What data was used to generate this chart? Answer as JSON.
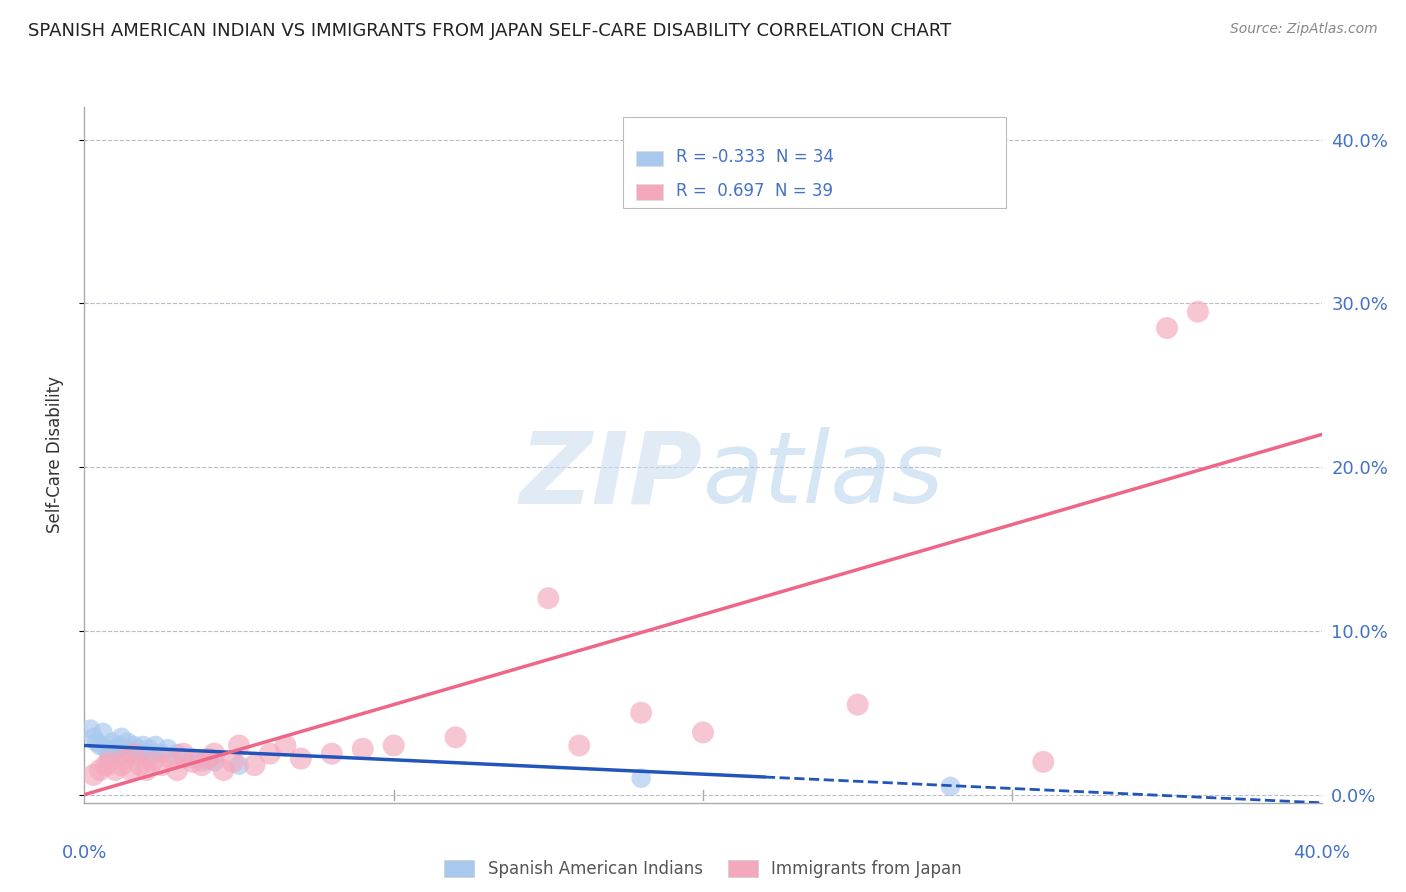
{
  "title": "SPANISH AMERICAN INDIAN VS IMMIGRANTS FROM JAPAN SELF-CARE DISABILITY CORRELATION CHART",
  "source": "Source: ZipAtlas.com",
  "ylabel": "Self-Care Disability",
  "legend_label1": "Spanish American Indians",
  "legend_label2": "Immigrants from Japan",
  "R1": -0.333,
  "N1": 34,
  "R2": 0.697,
  "N2": 39,
  "color1": "#A8C8EE",
  "color2": "#F4A8BC",
  "trendline1_color": "#2255BB",
  "trendline2_color": "#EE6688",
  "xrange": [
    0.0,
    0.4
  ],
  "yrange": [
    -0.005,
    0.42
  ],
  "ytick_vals": [
    0.0,
    0.1,
    0.2,
    0.3,
    0.4
  ],
  "scatter1_x": [
    0.002,
    0.003,
    0.004,
    0.005,
    0.006,
    0.007,
    0.008,
    0.009,
    0.01,
    0.011,
    0.012,
    0.012,
    0.013,
    0.014,
    0.015,
    0.016,
    0.017,
    0.018,
    0.019,
    0.02,
    0.021,
    0.022,
    0.023,
    0.025,
    0.027,
    0.03,
    0.032,
    0.035,
    0.038,
    0.04,
    0.042,
    0.05,
    0.18,
    0.28
  ],
  "scatter1_y": [
    0.04,
    0.035,
    0.032,
    0.03,
    0.038,
    0.028,
    0.025,
    0.032,
    0.028,
    0.03,
    0.025,
    0.035,
    0.028,
    0.032,
    0.025,
    0.03,
    0.028,
    0.025,
    0.03,
    0.025,
    0.028,
    0.025,
    0.03,
    0.025,
    0.028,
    0.025,
    0.022,
    0.022,
    0.02,
    0.022,
    0.02,
    0.018,
    0.01,
    0.005
  ],
  "scatter2_x": [
    0.003,
    0.005,
    0.007,
    0.008,
    0.01,
    0.012,
    0.013,
    0.015,
    0.016,
    0.018,
    0.02,
    0.022,
    0.025,
    0.028,
    0.03,
    0.032,
    0.035,
    0.038,
    0.04,
    0.042,
    0.045,
    0.048,
    0.05,
    0.055,
    0.06,
    0.065,
    0.07,
    0.08,
    0.09,
    0.1,
    0.12,
    0.15,
    0.16,
    0.18,
    0.2,
    0.25,
    0.31,
    0.35,
    0.36
  ],
  "scatter2_y": [
    0.012,
    0.015,
    0.018,
    0.02,
    0.015,
    0.018,
    0.022,
    0.015,
    0.025,
    0.018,
    0.015,
    0.02,
    0.018,
    0.022,
    0.015,
    0.025,
    0.02,
    0.018,
    0.022,
    0.025,
    0.015,
    0.02,
    0.03,
    0.018,
    0.025,
    0.03,
    0.022,
    0.025,
    0.028,
    0.03,
    0.035,
    0.12,
    0.03,
    0.05,
    0.038,
    0.055,
    0.02,
    0.285,
    0.295
  ],
  "trendline1_x0": 0.0,
  "trendline1_y0": 0.03,
  "trendline1_x1": 0.4,
  "trendline1_y1": -0.005,
  "trendline1_solid_end": 0.22,
  "trendline2_x0": 0.0,
  "trendline2_y0": 0.0,
  "trendline2_x1": 0.4,
  "trendline2_y1": 0.22
}
